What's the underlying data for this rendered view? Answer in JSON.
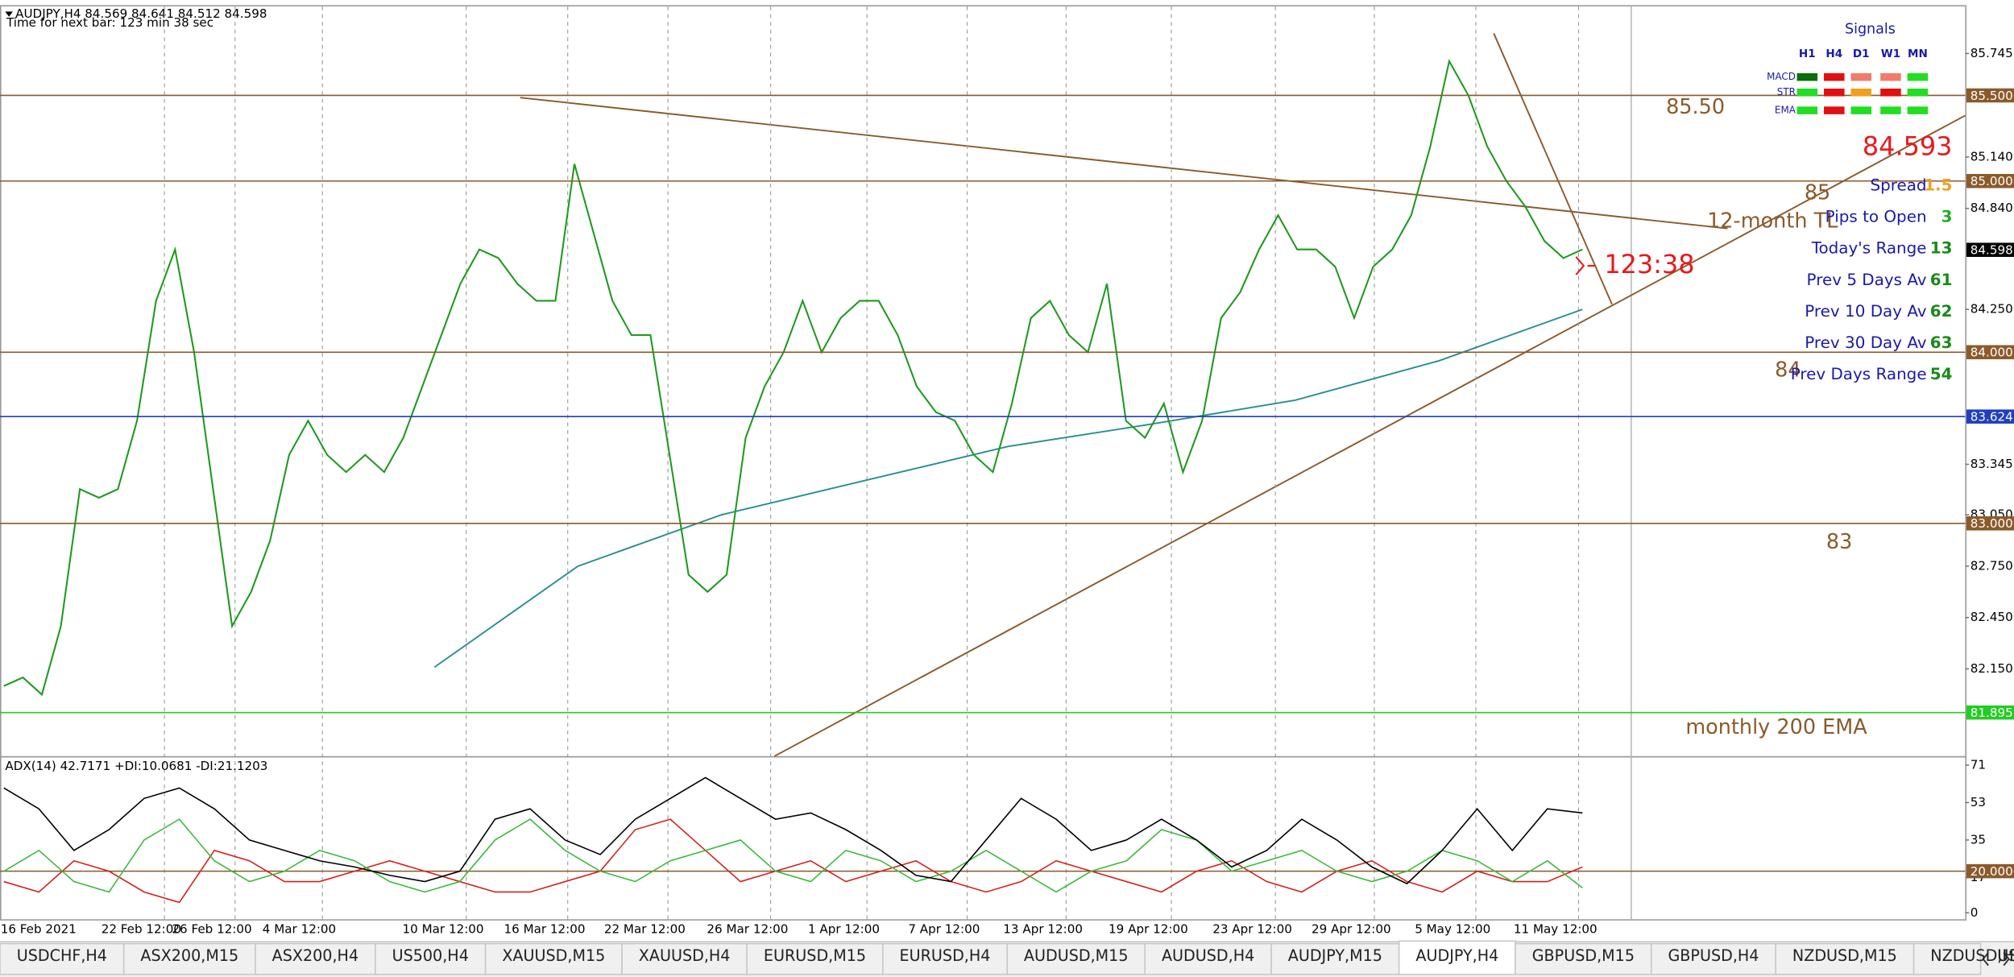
{
  "header": {
    "title": "AUDJPY,H4  84.569 84.641 84.512 84.598",
    "timer": "Time for next bar: 123 min 38 sec"
  },
  "chart_data": [
    {
      "type": "line",
      "ylim": [
        81.64,
        86.02
      ],
      "yticks": [
        85.745,
        {
          "value": 85.14,
          "label": "85.140"
        },
        {
          "value": 84.84,
          "label": "84.840"
        },
        {
          "value": 84.25,
          "label": "84.250"
        },
        83.345,
        {
          "value": 83.05,
          "label": "83.050"
        },
        {
          "value": 82.75,
          "label": "82.750"
        },
        {
          "value": 82.45,
          "label": "82.450"
        },
        {
          "value": 82.15,
          "label": "82.150"
        }
      ],
      "x_labels": [
        "16 Feb 2021",
        "22 Feb 12:00",
        "26 Feb 12:00",
        "4 Mar 12:00",
        "10 Mar 12:00",
        "16 Mar 12:00",
        "22 Mar 12:00",
        "26 Mar 12:00",
        "1 Apr 12:00",
        "7 Apr 12:00",
        "13 Apr 12:00",
        "19 Apr 12:00",
        "23 Apr 12:00",
        "29 Apr 12:00",
        "5 May 12:00",
        "11 May 12:00"
      ],
      "price": {
        "color": "#1f9a1f",
        "values": [
          82.05,
          82.1,
          82.0,
          82.4,
          83.2,
          83.15,
          83.2,
          83.6,
          84.3,
          84.6,
          84.0,
          83.2,
          82.4,
          82.6,
          82.9,
          83.4,
          83.6,
          83.4,
          83.3,
          83.4,
          83.3,
          83.5,
          83.8,
          84.1,
          84.4,
          84.6,
          84.55,
          84.4,
          84.3,
          84.3,
          85.1,
          84.7,
          84.3,
          84.1,
          84.1,
          83.4,
          82.7,
          82.6,
          82.7,
          83.5,
          83.8,
          84.0,
          84.3,
          84.0,
          84.2,
          84.3,
          84.3,
          84.1,
          83.8,
          83.65,
          83.6,
          83.4,
          83.3,
          83.7,
          84.2,
          84.3,
          84.1,
          84.0,
          84.4,
          83.6,
          83.5,
          83.7,
          83.3,
          83.6,
          84.2,
          84.35,
          84.6,
          84.8,
          84.6,
          84.6,
          84.5,
          84.2,
          84.5,
          84.6,
          84.8,
          85.2,
          85.7,
          85.5,
          85.2,
          85.0,
          84.85,
          84.65,
          84.55,
          84.6
        ]
      },
      "ema200": {
        "color": "#2a8f8f",
        "values": [
          null,
          null,
          null,
          82.16,
          82.75,
          83.05,
          83.25,
          83.45,
          83.58,
          83.72,
          83.95,
          84.25
        ]
      },
      "levels": [
        {
          "value": 85.5,
          "label": "85.500",
          "color": "#8b5a2b"
        },
        {
          "value": 85.0,
          "label": "85.000",
          "color": "#8b5a2b"
        },
        {
          "value": 84.0,
          "label": "84.000",
          "color": "#8b5a2b"
        },
        {
          "value": 83.624,
          "label": "83.624",
          "color": "#1f3fbf"
        },
        {
          "value": 83.0,
          "label": "83.000",
          "color": "#8b5a2b"
        },
        {
          "value": 81.895,
          "label": "81.895",
          "color": "#22cc22"
        }
      ],
      "current_price": {
        "value": 84.598,
        "label": "84.598",
        "color": "#000000"
      },
      "annotations": [
        "85.50",
        "85",
        "12-month TL",
        "84",
        "83",
        "monthly 200 EMA"
      ],
      "bid_price": "84.593",
      "countdown": "123:38"
    },
    {
      "type": "line",
      "title": "ADX(14) 42.7171 +DI:10.0681 -DI:21.1203",
      "ylim": [
        -3.1,
        74.7
      ],
      "yticks": [
        71,
        53,
        35,
        17,
        0
      ],
      "level": {
        "value": 20,
        "label": "20.0000",
        "color": "#8b5a2b"
      },
      "adx": {
        "color": "#000000",
        "values": [
          60,
          50,
          30,
          40,
          55,
          60,
          50,
          35,
          30,
          25,
          22,
          18,
          15,
          20,
          45,
          50,
          35,
          28,
          45,
          55,
          65,
          55,
          45,
          48,
          40,
          30,
          18,
          15,
          35,
          55,
          45,
          30,
          35,
          45,
          35,
          22,
          30,
          45,
          35,
          22,
          14,
          30,
          50,
          30,
          50,
          48
        ]
      },
      "plus_di": {
        "color": "#3cb93c",
        "values": [
          20,
          30,
          15,
          10,
          35,
          45,
          25,
          15,
          20,
          30,
          25,
          15,
          10,
          15,
          35,
          45,
          30,
          20,
          15,
          25,
          30,
          35,
          20,
          15,
          30,
          25,
          15,
          20,
          30,
          20,
          10,
          20,
          25,
          40,
          35,
          20,
          25,
          30,
          20,
          15,
          20,
          30,
          25,
          15,
          25,
          12
        ]
      },
      "minus_di": {
        "color": "#d62020",
        "values": [
          15,
          10,
          25,
          20,
          10,
          5,
          30,
          25,
          15,
          15,
          20,
          25,
          20,
          15,
          10,
          10,
          15,
          20,
          40,
          45,
          30,
          15,
          20,
          25,
          15,
          20,
          25,
          15,
          10,
          15,
          25,
          20,
          15,
          10,
          20,
          25,
          15,
          10,
          20,
          25,
          15,
          10,
          20,
          15,
          15,
          22
        ]
      }
    }
  ],
  "signals": {
    "title": "Signals",
    "columns": [
      "H1",
      "H4",
      "D1",
      "W1",
      "MN"
    ],
    "rows": [
      {
        "label": "MACD",
        "colors": [
          "#0a6e0a",
          "#e01010",
          "#f07c6c",
          "#f07c6c",
          "#22dd22"
        ]
      },
      {
        "label": "STR",
        "colors": [
          "#22dd22",
          "#e01010",
          "#f0a020",
          "#e01010",
          "#22dd22"
        ]
      },
      {
        "label": "EMA",
        "colors": [
          "#22dd22",
          "#e01010",
          "#22dd22",
          "#22dd22",
          "#22dd22"
        ]
      }
    ]
  },
  "info_panel": [
    {
      "label": "Spread",
      "value": 1.5,
      "color": "#f0a020"
    },
    {
      "label": "Pips to Open",
      "value": 3,
      "color": "#22aa22"
    },
    {
      "label": "Today's Range",
      "value": 13,
      "color": "#1a8a1a"
    },
    {
      "label": "Prev 5 Days Av",
      "value": 61,
      "color": "#1a8a1a"
    },
    {
      "label": "Prev 10 Day Av",
      "value": 62,
      "color": "#1a8a1a"
    },
    {
      "label": "Prev 30 Day Av",
      "value": 63,
      "color": "#1a8a1a"
    },
    {
      "label": "Prev Days Range",
      "value": 54,
      "color": "#1a8a1a"
    }
  ],
  "tabs": [
    {
      "label": "USDCHF,H4",
      "active": false
    },
    {
      "label": "ASX200,M15",
      "active": false
    },
    {
      "label": "ASX200,H4",
      "active": false
    },
    {
      "label": "US500,H4",
      "active": false
    },
    {
      "label": "XAUUSD,M15",
      "active": false
    },
    {
      "label": "XAUUSD,H4",
      "active": false
    },
    {
      "label": "EURUSD,M15",
      "active": false
    },
    {
      "label": "EURUSD,H4",
      "active": false
    },
    {
      "label": "AUDUSD,M15",
      "active": false
    },
    {
      "label": "AUDUSD,H4",
      "active": false
    },
    {
      "label": "AUDJPY,M15",
      "active": false
    },
    {
      "label": "AUDJPY,H4",
      "active": true
    },
    {
      "label": "GBPUSD,M15",
      "active": false
    },
    {
      "label": "GBPUSD,H4",
      "active": false
    },
    {
      "label": "NZDUSD,M15",
      "active": false
    },
    {
      "label": "NZDUSD,H4",
      "active": false
    },
    {
      "label": "USDJPY,M15",
      "active": false
    },
    {
      "label": "US",
      "active": false
    }
  ]
}
